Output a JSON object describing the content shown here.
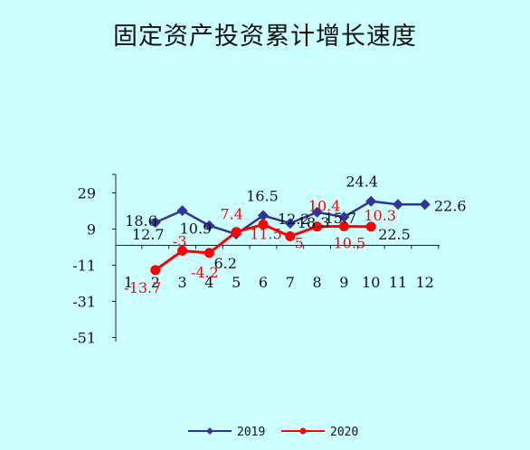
{
  "chart_data": {
    "type": "line",
    "title": "固定资产投资累计增长速度",
    "xlabel": "",
    "ylabel": "",
    "x": [
      "1",
      "2",
      "3",
      "4",
      "5",
      "6",
      "7",
      "8",
      "9",
      "10",
      "11",
      "12"
    ],
    "yticks": [
      29,
      9,
      -11,
      -31,
      -51
    ],
    "ylim": [
      -51,
      39
    ],
    "grid": false,
    "legend_position": "bottom",
    "series": [
      {
        "name": "2019",
        "color": "#333399",
        "marker": "diamond",
        "values": [
          null,
          12.7,
          19.2,
          10.9,
          6.2,
          16.5,
          12.2,
          18.3,
          15.7,
          24.4,
          22.6,
          22.6
        ],
        "labels": [
          null,
          "12.7",
          null,
          "10.9",
          "6.2",
          "16.5",
          "12.2",
          "18.3",
          "15.7",
          "24.4",
          null,
          "22.6"
        ]
      },
      {
        "name": "2020",
        "color": "#ff0000",
        "marker": "circle",
        "values": [
          null,
          -13.7,
          -3,
          -4.2,
          7.4,
          11.5,
          5,
          10.4,
          10.5,
          10.3,
          null,
          null
        ],
        "labels": [
          null,
          "-13.7",
          "-3",
          "-4.2",
          "7.4",
          "11.5",
          "5",
          "10.4",
          "10.5",
          "10.3",
          null,
          null
        ]
      }
    ],
    "annotations": [
      "18.6",
      "22.5"
    ]
  }
}
